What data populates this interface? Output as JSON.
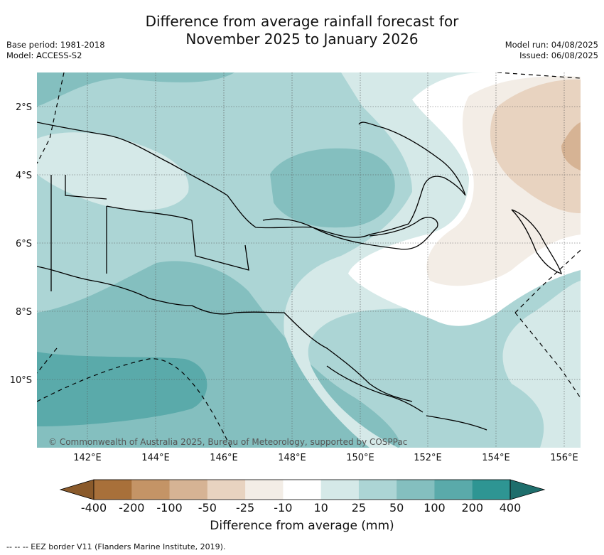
{
  "header": {
    "title_line1": "Difference from average rainfall forecast for",
    "title_line2": "November 2025 to January 2026",
    "base_period": "Base period: 1981-2018",
    "model": "Model: ACCESS-S2",
    "model_run": "Model run: 04/08/2025",
    "issued": "Issued: 06/08/2025"
  },
  "map": {
    "copyright": "© Commonwealth of Australia 2025, Bureau of Meteorology, supported by COSPPac",
    "lon_ticks": [
      "142°E",
      "144°E",
      "146°E",
      "148°E",
      "150°E",
      "152°E",
      "154°E",
      "156°E"
    ],
    "lat_ticks": [
      "2°S",
      "4°S",
      "6°S",
      "8°S",
      "10°S"
    ]
  },
  "colorbar": {
    "title": "Difference from average (mm)",
    "tick_labels": [
      "-400",
      "-200",
      "-100",
      "-50",
      "-25",
      "-10",
      "10",
      "25",
      "50",
      "100",
      "200",
      "400"
    ],
    "colors": [
      "#a8703a",
      "#c49466",
      "#d6b394",
      "#e8d3c0",
      "#f3ede6",
      "#ffffff",
      "#d5e9e8",
      "#acd5d5",
      "#84bfbf",
      "#5aaaaa",
      "#2e9593"
    ],
    "low_extend_color": "#8a5a2b",
    "high_extend_color": "#1e6e6c"
  },
  "footer": {
    "eez_caption": "--  --  -- EEZ border V11 (Flanders Marine Institute, 2019)."
  }
}
